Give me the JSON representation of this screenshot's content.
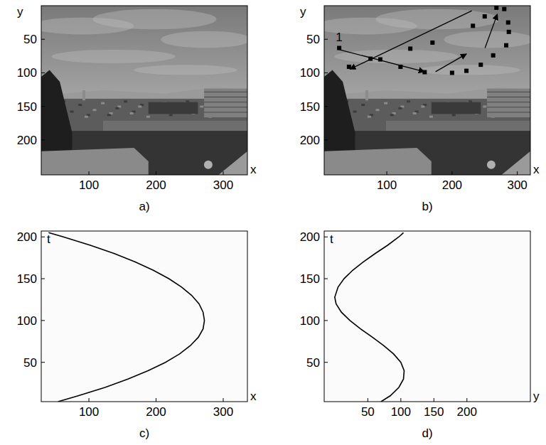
{
  "chart_data": [
    {
      "type": "image",
      "title": "a)",
      "x_label": "x",
      "y_label": "y",
      "xlim": [
        29,
        336
      ],
      "ylim": [
        252,
        0
      ],
      "xticks": [
        100,
        200,
        300
      ],
      "yticks": [
        50,
        100,
        150,
        200
      ]
    },
    {
      "type": "image",
      "title": "b)",
      "x_label": "x",
      "y_label": "y",
      "xlim": [
        4,
        320
      ],
      "ylim": [
        252,
        0
      ],
      "xticks": [
        100,
        200,
        300
      ],
      "yticks": [
        50,
        100,
        150,
        200
      ],
      "annotations": [
        "1"
      ],
      "series": [
        {
          "type": "scatter",
          "marker": "square",
          "color": "#000000",
          "x": [
            27,
            42,
            75,
            90,
            121,
            136,
            158,
            170,
            200,
            222,
            232,
            250,
            244,
            263,
            268,
            280,
            286,
            287,
            283
          ],
          "values": [
            63,
            91,
            79,
            80,
            91,
            64,
            99,
            55,
            100,
            97,
            30,
            16,
            88,
            74,
            3,
            5,
            25,
            39,
            59
          ]
        }
      ]
    },
    {
      "type": "line",
      "title": "c)",
      "x_label": "x",
      "y_label": "t",
      "color": "#000000",
      "xlim": [
        29,
        336
      ],
      "ylim": [
        3,
        207
      ],
      "xticks": [
        100,
        200,
        300
      ],
      "yticks": [
        50,
        100,
        150,
        200
      ],
      "x": [
        54,
        84,
        124,
        158,
        188,
        214,
        235,
        251,
        263,
        270,
        272,
        270,
        264,
        253,
        238,
        219,
        196,
        169,
        138,
        102,
        62,
        40
      ],
      "values": [
        3,
        10,
        20,
        30,
        40,
        50,
        60,
        70,
        80,
        90,
        100,
        110,
        120,
        130,
        140,
        150,
        160,
        170,
        180,
        190,
        200,
        205
      ]
    },
    {
      "type": "line",
      "title": "d)",
      "x_label": "y",
      "y_label": "t",
      "color": "#000000",
      "xlim": [
        -16,
        296
      ],
      "ylim": [
        3,
        207
      ],
      "xticks": [
        50,
        100,
        150,
        200
      ],
      "yticks": [
        50,
        100,
        150,
        200
      ],
      "x": [
        70,
        84,
        97,
        104,
        105,
        100,
        89,
        74,
        57,
        39,
        23,
        10,
        2,
        0,
        5,
        14,
        27,
        43,
        61,
        80,
        97,
        104
      ],
      "values": [
        3,
        10,
        20,
        30,
        40,
        50,
        60,
        70,
        80,
        90,
        100,
        110,
        120,
        128,
        140,
        150,
        160,
        170,
        180,
        190,
        200,
        205
      ]
    }
  ]
}
